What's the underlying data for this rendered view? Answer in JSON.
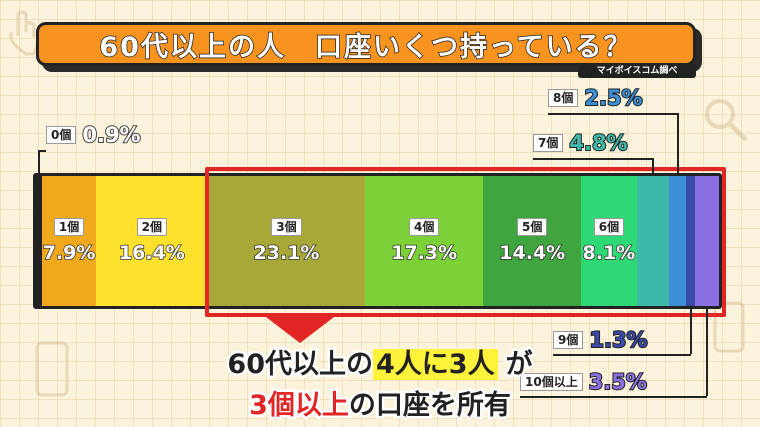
{
  "title": "60代以上の人　口座いくつ持っている？",
  "source": "マイボイスコム調べ",
  "chart_data": {
    "type": "bar",
    "orientation": "horizontal-stacked-100",
    "unit": "%",
    "categories": [
      "0個",
      "1個",
      "2個",
      "3個",
      "4個",
      "5個",
      "6個",
      "7個",
      "8個",
      "9個",
      "10個以上"
    ],
    "values": [
      0.9,
      7.9,
      16.4,
      23.1,
      17.3,
      14.4,
      8.1,
      4.8,
      2.5,
      1.3,
      3.5
    ],
    "value_labels": [
      "0.9%",
      "7.9%",
      "16.4%",
      "23.1%",
      "17.3%",
      "14.4%",
      "8.1%",
      "4.8%",
      "2.5%",
      "1.3%",
      "3.5%"
    ],
    "colors": [
      "#222222",
      "#f0a81c",
      "#fde12d",
      "#a8a838",
      "#7cd136",
      "#3fa53f",
      "#2ed874",
      "#3eb8a8",
      "#3a8fd6",
      "#3a4aa8",
      "#8a70e2"
    ],
    "highlight_range": [
      "3個",
      "10個以上"
    ]
  },
  "caption": {
    "line1_pre": "60代以上の",
    "line1_hl": "4人に3人",
    "line1_post": "が",
    "line2_red": "3個以上",
    "line2_post": "の口座を所有"
  }
}
